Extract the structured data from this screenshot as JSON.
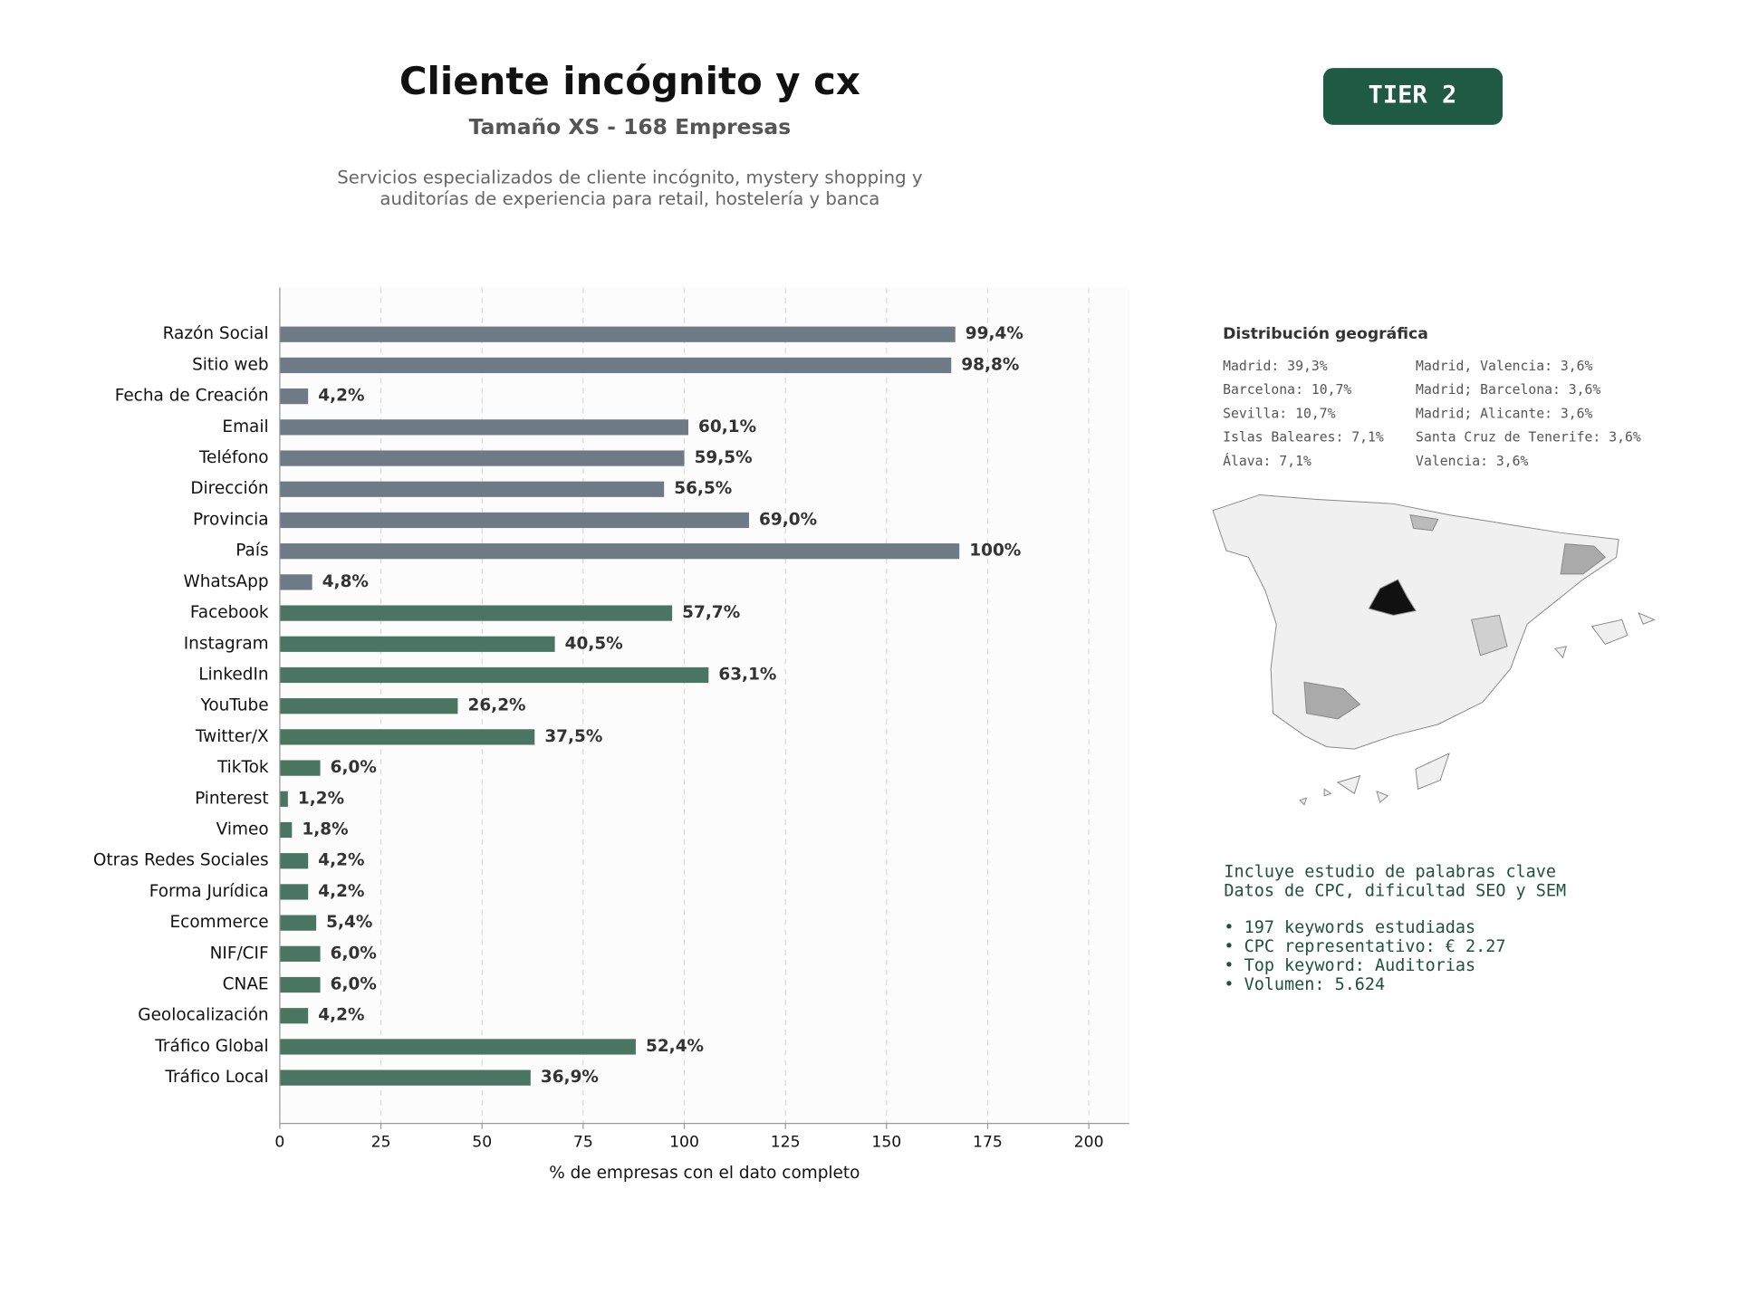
{
  "chart_data": {
    "type": "bar",
    "title": "Cliente incógnito y cx",
    "subtitle": "Tamaño XS - 168 Empresas",
    "description": [
      "Servicios especializados de cliente incógnito, mystery shopping y",
      "auditorías de experiencia para retail, hostelería y banca"
    ],
    "tier": "TIER 2",
    "xlabel": "% de empresas con el dato completo",
    "categories": [
      "Razón Social",
      "Sitio web",
      "Fecha de Creación",
      "Email",
      "Teléfono",
      "Dirección",
      "Provincia",
      "País",
      "WhatsApp",
      "Facebook",
      "Instagram",
      "LinkedIn",
      "YouTube",
      "Twitter/X",
      "TikTok",
      "Pinterest",
      "Vimeo",
      "Otras Redes Sociales",
      "Forma Jurídica",
      "Ecommerce",
      "NIF/CIF",
      "CNAE",
      "Geolocalización",
      "Tráfico Global",
      "Tráfico Local"
    ],
    "values": [
      167,
      166,
      7,
      101,
      100,
      95,
      116,
      168,
      8,
      97,
      68,
      106,
      44,
      63,
      10,
      2,
      3,
      7,
      7,
      9,
      10,
      10,
      7,
      88,
      62
    ],
    "value_labels": [
      "99,4%",
      "98,8%",
      "4,2%",
      "60,1%",
      "59,5%",
      "56,5%",
      "69,0%",
      "100%",
      "4,8%",
      "57,7%",
      "40,5%",
      "63,1%",
      "26,2%",
      "37,5%",
      "6,0%",
      "1,2%",
      "1,8%",
      "4,2%",
      "4,2%",
      "5,4%",
      "6,0%",
      "6,0%",
      "4,2%",
      "52,4%",
      "36,9%"
    ],
    "colors": [
      "#6e7a85",
      "#6e7a85",
      "#6e7a85",
      "#6e7a85",
      "#6e7a85",
      "#6e7a85",
      "#6e7a85",
      "#6e7a85",
      "#6e7a85",
      "#4a7563",
      "#4a7563",
      "#4a7563",
      "#4a7563",
      "#4a7563",
      "#4a7563",
      "#4a7563",
      "#4a7563",
      "#4a7563",
      "#4a7563",
      "#4a7563",
      "#4a7563",
      "#4a7563",
      "#4a7563",
      "#4a7563",
      "#4a7563"
    ],
    "xlim": [
      0,
      210
    ],
    "xticks": [
      0,
      25,
      50,
      75,
      100,
      125,
      150,
      175,
      200
    ],
    "grid": true,
    "geo_title": "Distribución geográfica",
    "geo_items": [
      "Madrid: 39,3%",
      "Barcelona: 10,7%",
      "Sevilla: 10,7%",
      "Islas Baleares: 7,1%",
      "Álava: 7,1%",
      "Madrid, Valencia: 3,6%",
      "Madrid; Barcelona: 3,6%",
      "Madrid; Alicante: 3,6%",
      "Santa Cruz de Tenerife: 3,6%",
      "Valencia: 3,6%"
    ],
    "notes": [
      "Incluye estudio de palabras clave",
      "Datos de CPC, dificultad SEO y SEM",
      "• 197 keywords estudiadas",
      "• CPC representativo: € 2.27",
      "• Top keyword: Auditorias",
      "• Volumen: 5.624"
    ]
  }
}
